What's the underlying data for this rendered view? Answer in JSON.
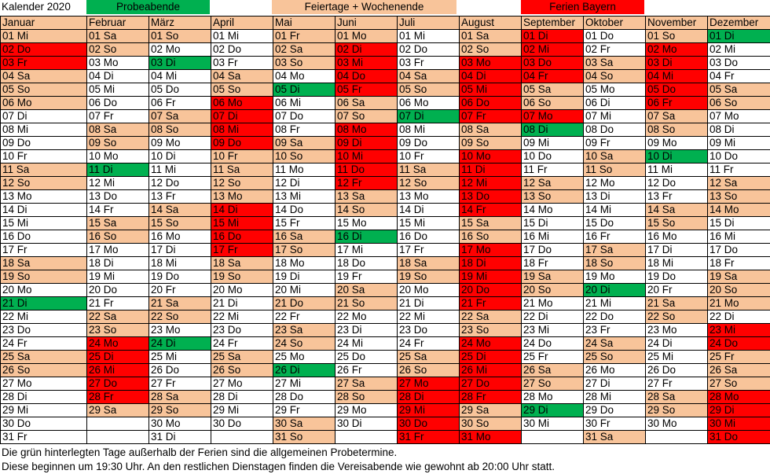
{
  "legend": {
    "title": "Kalender 2020",
    "probe": "Probeabende",
    "feiertage": "Feiertage + Wochenende",
    "ferien": "Ferien Bayern"
  },
  "colors": {
    "weekday": "#ffffff",
    "feiertag_wochenende": "#f8c49a",
    "ferien": "#ff0000",
    "probeabend": "#00b050"
  },
  "months": [
    {
      "name": "Januar",
      "days": [
        "01 Mi",
        "02 Do",
        "03 Fr",
        "04 Sa",
        "05 So",
        "06 Mo",
        "07 Di",
        "08 Mi",
        "09 Do",
        "10 Fr",
        "11 Sa",
        "12 So",
        "13 Mo",
        "14 Di",
        "15 Mi",
        "16 Do",
        "17 Fr",
        "18 Sa",
        "19 So",
        "20 Mo",
        "21 Di",
        "22 Mi",
        "23 Do",
        "24 Fr",
        "25 Sa",
        "26 So",
        "27 Mo",
        "28 Di",
        "29 Mi",
        "30 Do",
        "31 Fr"
      ],
      "colors": [
        "o",
        "r",
        "r",
        "o",
        "o",
        "o",
        "w",
        "w",
        "w",
        "w",
        "o",
        "o",
        "w",
        "w",
        "w",
        "w",
        "w",
        "o",
        "o",
        "w",
        "g",
        "w",
        "w",
        "w",
        "o",
        "o",
        "w",
        "w",
        "w",
        "w",
        "w"
      ]
    },
    {
      "name": "Februar",
      "days": [
        "01 Sa",
        "02 So",
        "03 Mo",
        "04 Di",
        "05 Mi",
        "06 Do",
        "07 Fr",
        "08 Sa",
        "09 So",
        "10 Mo",
        "11 Di",
        "12 Mi",
        "13 Do",
        "14 Fr",
        "15 Sa",
        "16 So",
        "17 Mo",
        "18 Di",
        "19 Mi",
        "20 Do",
        "21 Fr",
        "22 Sa",
        "23 So",
        "24 Mo",
        "25 Di",
        "26 Mi",
        "27 Do",
        "28 Fr",
        "29 Sa",
        "",
        ""
      ],
      "colors": [
        "o",
        "o",
        "w",
        "w",
        "w",
        "w",
        "w",
        "o",
        "o",
        "w",
        "g",
        "w",
        "w",
        "w",
        "o",
        "o",
        "w",
        "w",
        "w",
        "w",
        "w",
        "o",
        "o",
        "r",
        "r",
        "r",
        "r",
        "r",
        "o",
        "n",
        "n"
      ]
    },
    {
      "name": "März",
      "days": [
        "01 So",
        "02 Mo",
        "03 Di",
        "04 Mi",
        "05 Do",
        "06 Fr",
        "07 Sa",
        "08 So",
        "09 Mo",
        "10 Di",
        "11 Mi",
        "12 Do",
        "13 Fr",
        "14 Sa",
        "15 So",
        "16 Mo",
        "17 Di",
        "18 Mi",
        "19 Do",
        "20 Fr",
        "21 Sa",
        "22 So",
        "23 Mo",
        "24 Di",
        "25 Mi",
        "26 Do",
        "27 Fr",
        "28 Sa",
        "29 So",
        "30 Mo",
        "31 Di"
      ],
      "colors": [
        "o",
        "w",
        "g",
        "w",
        "w",
        "w",
        "o",
        "o",
        "w",
        "w",
        "w",
        "w",
        "w",
        "o",
        "o",
        "w",
        "w",
        "w",
        "w",
        "w",
        "o",
        "o",
        "w",
        "g",
        "w",
        "w",
        "w",
        "o",
        "o",
        "w",
        "w"
      ]
    },
    {
      "name": "April",
      "days": [
        "01 Mi",
        "02 Do",
        "03 Fr",
        "04 Sa",
        "05 So",
        "06 Mo",
        "07 Di",
        "08 Mi",
        "09 Do",
        "10 Fr",
        "11 Sa",
        "12 So",
        "13 Mo",
        "14 Di",
        "15 Mi",
        "16 Do",
        "17 Fr",
        "18 Sa",
        "19 So",
        "20 Mo",
        "21 Di",
        "22 Mi",
        "23 Do",
        "24 Fr",
        "25 Sa",
        "26 So",
        "27 Mo",
        "28 Di",
        "29 Mi",
        "30 Do",
        ""
      ],
      "colors": [
        "w",
        "w",
        "w",
        "o",
        "o",
        "r",
        "r",
        "r",
        "r",
        "o",
        "o",
        "o",
        "o",
        "r",
        "r",
        "r",
        "r",
        "o",
        "o",
        "w",
        "w",
        "w",
        "w",
        "w",
        "o",
        "o",
        "w",
        "w",
        "w",
        "w",
        "n"
      ]
    },
    {
      "name": "Mai",
      "days": [
        "01 Fr",
        "02 Sa",
        "03 So",
        "04 Mo",
        "05 Di",
        "06 Mi",
        "07 Do",
        "08 Fr",
        "09 Sa",
        "10 So",
        "11 Mo",
        "12 Di",
        "13 Mi",
        "14 Do",
        "15 Fr",
        "16 Sa",
        "17 So",
        "18 Mo",
        "19 Di",
        "20 Mi",
        "21 Do",
        "22 Fr",
        "23 Sa",
        "24 So",
        "25 Mo",
        "26 Di",
        "27 Mi",
        "28 Do",
        "29 Fr",
        "30 Sa",
        "31 So"
      ],
      "colors": [
        "o",
        "o",
        "o",
        "w",
        "g",
        "w",
        "w",
        "w",
        "o",
        "o",
        "w",
        "w",
        "w",
        "w",
        "w",
        "o",
        "o",
        "w",
        "w",
        "w",
        "o",
        "w",
        "o",
        "o",
        "w",
        "g",
        "w",
        "w",
        "w",
        "o",
        "o"
      ]
    },
    {
      "name": "Juni",
      "days": [
        "01 Mo",
        "02 Di",
        "03 Mi",
        "04 Do",
        "05 Fr",
        "06 Sa",
        "07 So",
        "08 Mo",
        "09 Di",
        "10 Mi",
        "11 Do",
        "12 Fr",
        "13 Sa",
        "14 So",
        "15 Mo",
        "16 Di",
        "17 Mi",
        "18 Do",
        "19 Fr",
        "20 Sa",
        "21 So",
        "22 Mo",
        "23 Di",
        "24 Mi",
        "25 Do",
        "26 Fr",
        "27 Sa",
        "28 So",
        "29 Mo",
        "30 Di",
        ""
      ],
      "colors": [
        "o",
        "r",
        "r",
        "r",
        "r",
        "o",
        "o",
        "r",
        "r",
        "r",
        "r",
        "r",
        "o",
        "o",
        "w",
        "g",
        "w",
        "w",
        "w",
        "o",
        "o",
        "w",
        "w",
        "w",
        "w",
        "w",
        "o",
        "o",
        "w",
        "w",
        "n"
      ]
    },
    {
      "name": "Juli",
      "days": [
        "01 Mi",
        "02 Do",
        "03 Fr",
        "04 Sa",
        "05 So",
        "06 Mo",
        "07 Di",
        "08 Mi",
        "09 Do",
        "10 Fr",
        "11 Sa",
        "12 So",
        "13 Mo",
        "14 Di",
        "15 Mi",
        "16 Do",
        "17 Fr",
        "18 Sa",
        "19 So",
        "20 Mo",
        "21 Di",
        "22 Mi",
        "23 Do",
        "24 Fr",
        "25 Sa",
        "26 So",
        "27 Mo",
        "28 Di",
        "29 Mi",
        "30 Do",
        "31 Fr"
      ],
      "colors": [
        "w",
        "w",
        "w",
        "o",
        "o",
        "w",
        "g",
        "w",
        "w",
        "w",
        "o",
        "o",
        "w",
        "w",
        "w",
        "w",
        "w",
        "o",
        "o",
        "w",
        "w",
        "w",
        "w",
        "w",
        "o",
        "o",
        "r",
        "r",
        "r",
        "r",
        "r"
      ]
    },
    {
      "name": "August",
      "days": [
        "01 Sa",
        "02 So",
        "03 Mo",
        "04 Di",
        "05 Mi",
        "06 Do",
        "07 Fr",
        "08 Sa",
        "09 So",
        "10 Mo",
        "11 Di",
        "12 Mi",
        "13 Do",
        "14 Fr",
        "15 Sa",
        "16 So",
        "17 Mo",
        "18 Di",
        "19 Mi",
        "20 Do",
        "21 Fr",
        "22 Sa",
        "23 So",
        "24 Mo",
        "25 Di",
        "26 Mi",
        "27 Do",
        "28 Fr",
        "29 Sa",
        "30 So",
        "31 Mo"
      ],
      "colors": [
        "o",
        "o",
        "r",
        "r",
        "r",
        "r",
        "r",
        "o",
        "o",
        "r",
        "r",
        "r",
        "r",
        "r",
        "o",
        "o",
        "r",
        "r",
        "r",
        "r",
        "r",
        "o",
        "o",
        "r",
        "r",
        "r",
        "r",
        "r",
        "o",
        "o",
        "r"
      ]
    },
    {
      "name": "September",
      "days": [
        "01 Di",
        "02 Mi",
        "03 Do",
        "04 Fr",
        "05 Sa",
        "06 So",
        "07 Mo",
        "08 Di",
        "09 Mi",
        "10 Do",
        "11 Fr",
        "12 Sa",
        "13 So",
        "14 Mo",
        "15 Di",
        "16 Mi",
        "17 Do",
        "18 Fr",
        "19 Sa",
        "20 So",
        "21 Mo",
        "22 Di",
        "23 Mi",
        "24 Do",
        "25 Fr",
        "26 Sa",
        "27 So",
        "28 Mo",
        "29 Di",
        "30 Mi",
        ""
      ],
      "colors": [
        "r",
        "r",
        "r",
        "r",
        "o",
        "o",
        "r",
        "g",
        "w",
        "w",
        "w",
        "o",
        "o",
        "w",
        "w",
        "w",
        "w",
        "w",
        "o",
        "o",
        "w",
        "w",
        "w",
        "w",
        "w",
        "o",
        "o",
        "w",
        "g",
        "w",
        "n"
      ]
    },
    {
      "name": "Oktober",
      "days": [
        "01 Do",
        "02 Fr",
        "03 Sa",
        "04 So",
        "05 Mo",
        "06 Di",
        "07 Mi",
        "08 Do",
        "09 Fr",
        "10 Sa",
        "11 So",
        "12 Mo",
        "13 Di",
        "14 Mi",
        "15 Do",
        "16 Fr",
        "17 Sa",
        "18 So",
        "19 Mo",
        "20 Di",
        "21 Mi",
        "22 Do",
        "23 Fr",
        "24 Sa",
        "25 So",
        "26 Mo",
        "27 Di",
        "28 Mi",
        "29 Do",
        "30 Fr",
        "31 Sa"
      ],
      "colors": [
        "w",
        "w",
        "o",
        "o",
        "w",
        "w",
        "w",
        "w",
        "w",
        "o",
        "o",
        "w",
        "w",
        "w",
        "w",
        "w",
        "o",
        "o",
        "w",
        "g",
        "w",
        "w",
        "w",
        "o",
        "o",
        "w",
        "w",
        "w",
        "w",
        "w",
        "o"
      ]
    },
    {
      "name": "November",
      "days": [
        "01 So",
        "02 Mo",
        "03 Di",
        "04 Mi",
        "05 Do",
        "06 Fr",
        "07 Sa",
        "08 So",
        "09 Mo",
        "10 Di",
        "11 Mi",
        "12 Do",
        "13 Fr",
        "14 Sa",
        "15 So",
        "16 Mo",
        "17 Di",
        "18 Mi",
        "19 Do",
        "20 Fr",
        "21 Sa",
        "22 So",
        "23 Mo",
        "24 Di",
        "25 Mi",
        "26 Do",
        "27 Fr",
        "28 Sa",
        "29 So",
        "30 Mo",
        ""
      ],
      "colors": [
        "o",
        "r",
        "r",
        "r",
        "r",
        "r",
        "o",
        "o",
        "w",
        "g",
        "w",
        "w",
        "w",
        "o",
        "o",
        "w",
        "w",
        "w",
        "w",
        "w",
        "o",
        "o",
        "w",
        "w",
        "w",
        "w",
        "w",
        "o",
        "o",
        "w",
        "n"
      ]
    },
    {
      "name": "Dezember",
      "days": [
        "01 Di",
        "02 Mi",
        "03 Do",
        "04 Fr",
        "05 Sa",
        "06 So",
        "07 Mo",
        "08 Di",
        "09 Mi",
        "10 Do",
        "11 Fr",
        "12 Sa",
        "13 So",
        "14 Mo",
        "15 Di",
        "16 Mi",
        "17 Do",
        "18 Fr",
        "19 Sa",
        "20 So",
        "21 Mo",
        "22 Di",
        "23 Mi",
        "24 Do",
        "25 Fr",
        "26 Sa",
        "27 So",
        "28 Mo",
        "29 Di",
        "30 Mi",
        "31 Do"
      ],
      "colors": [
        "g",
        "w",
        "w",
        "w",
        "o",
        "o",
        "w",
        "w",
        "w",
        "w",
        "w",
        "o",
        "o",
        "o",
        "w",
        "w",
        "w",
        "w",
        "o",
        "o",
        "o",
        "w",
        "r",
        "r",
        "o",
        "o",
        "o",
        "r",
        "r",
        "r",
        "r"
      ]
    }
  ],
  "notes": [
    "Die grün hinterlegten Tage außerhalb der Ferien sind die allgemeinen Probetermine.",
    "Diese beginnen um 19:30 Uhr. An den restlichen Dienstagen finden die Vereisabende wie gewohnt ab 20:00 Uhr statt."
  ]
}
